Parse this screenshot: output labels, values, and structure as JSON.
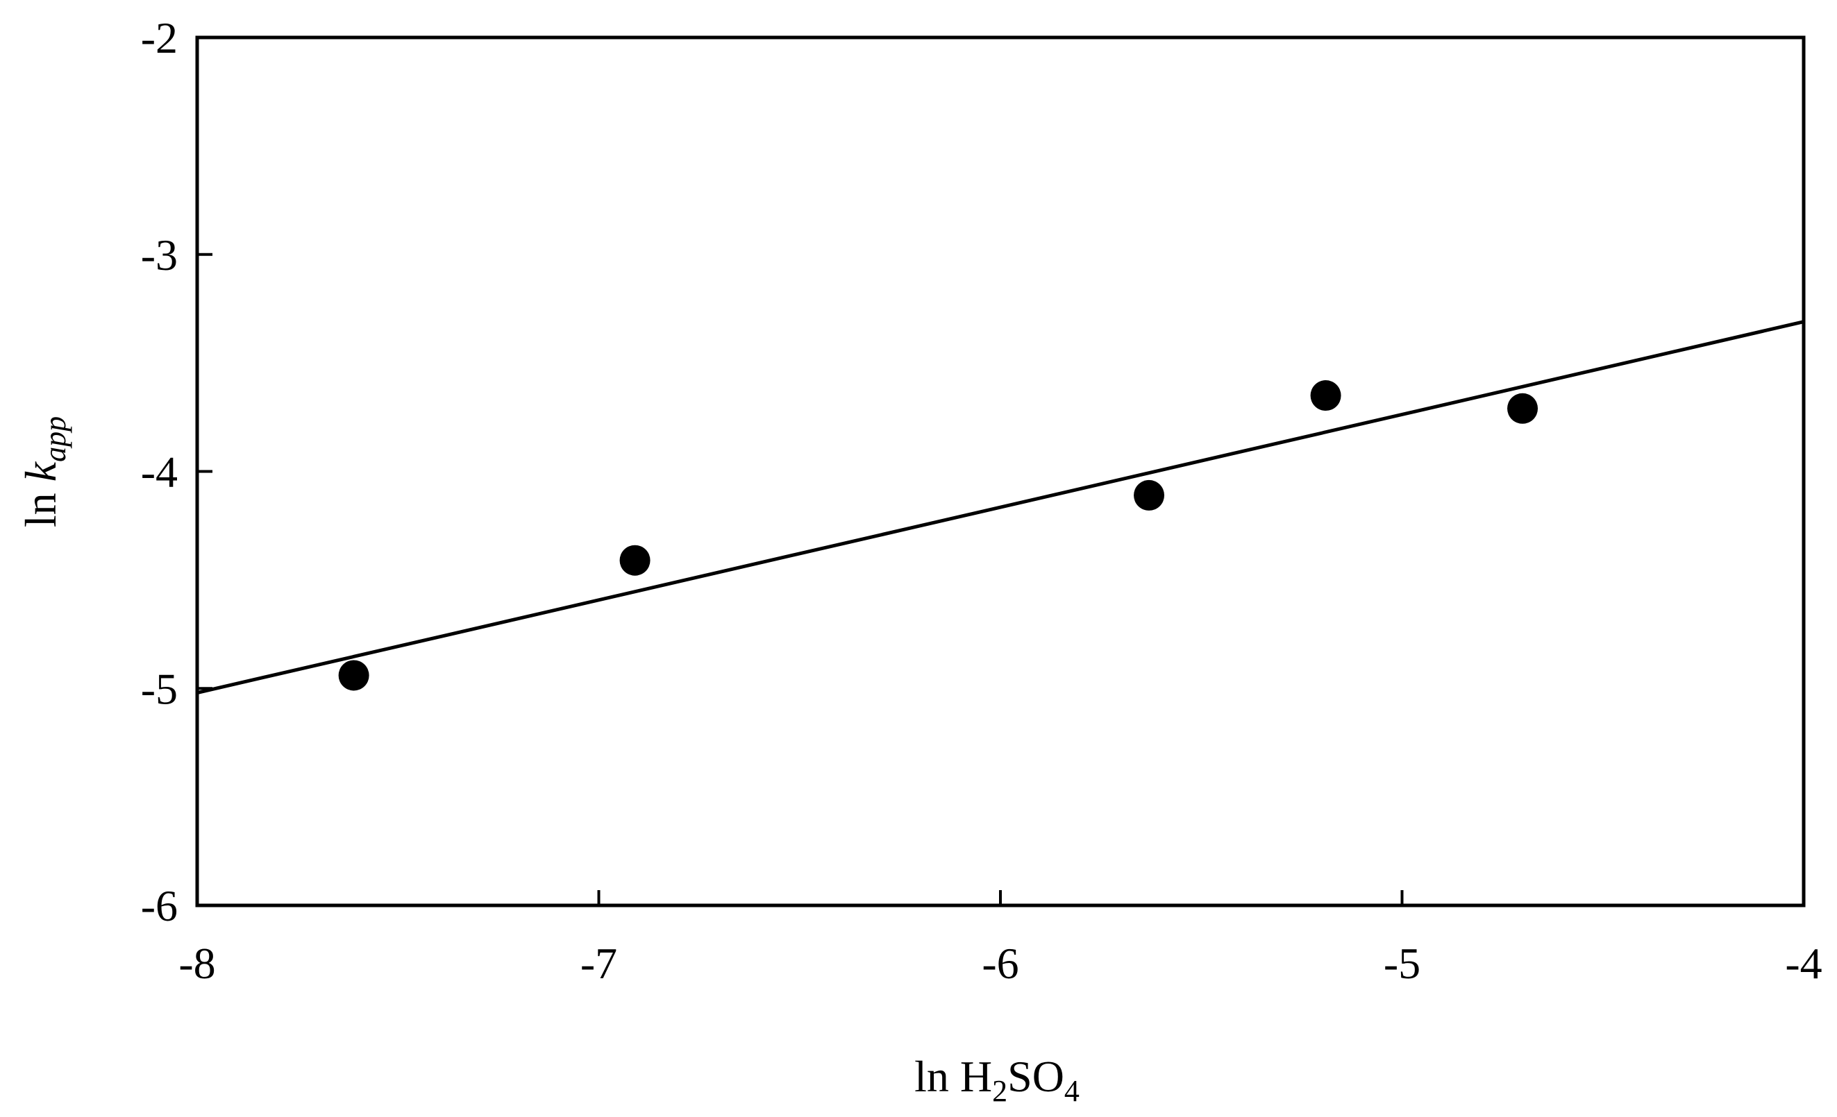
{
  "chart_data": {
    "type": "scatter",
    "xlabel": {
      "prefix": "ln H",
      "sub1": "2",
      "mid": "SO",
      "sub2": "4"
    },
    "ylabel": {
      "prefix": "ln ",
      "italic": "k",
      "sub": "app"
    },
    "xlim": [
      -8,
      -4
    ],
    "ylim": [
      -6,
      -2
    ],
    "xticks": [
      -8,
      -7,
      -6,
      -5,
      -4
    ],
    "yticks": [
      -6,
      -5,
      -4,
      -3,
      -2
    ],
    "xtick_labels": [
      "-8",
      "-7",
      "-6",
      "-5",
      "-4"
    ],
    "ytick_labels": [
      "-6",
      "-5",
      "-4",
      "-3",
      "-2"
    ],
    "grid": false,
    "legend": "none",
    "points": [
      {
        "x": -7.61,
        "y": -4.94
      },
      {
        "x": -6.91,
        "y": -4.41
      },
      {
        "x": -5.63,
        "y": -4.11
      },
      {
        "x": -5.19,
        "y": -3.65
      },
      {
        "x": -4.7,
        "y": -3.71
      }
    ],
    "fit_line": {
      "x": [
        -8,
        -4
      ],
      "y": [
        -5.02,
        -3.31
      ]
    },
    "colors": {
      "marker": "#000000",
      "line": "#000000",
      "axes": "#000000"
    }
  }
}
